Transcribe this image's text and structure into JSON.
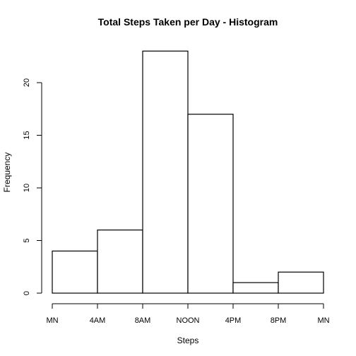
{
  "chart_data": {
    "type": "bar",
    "subtype": "histogram",
    "title": "Total Steps Taken per Day - Histogram",
    "xlabel": "Steps",
    "ylabel": "Frequency",
    "categories": [
      "MN–4AM",
      "4AM–8AM",
      "8AM–NOON",
      "NOON–4PM",
      "4PM–8PM",
      "8PM–MN"
    ],
    "values": [
      4,
      6,
      23,
      17,
      1,
      2
    ],
    "x_ticks": [
      "MN",
      "4AM",
      "8AM",
      "NOON",
      "4PM",
      "8PM",
      "MN"
    ],
    "y_ticks": [
      0,
      5,
      10,
      15,
      20
    ],
    "ylim": [
      0,
      23
    ],
    "grid": false,
    "bar_fill": "#ffffff",
    "bar_stroke": "#000000"
  }
}
